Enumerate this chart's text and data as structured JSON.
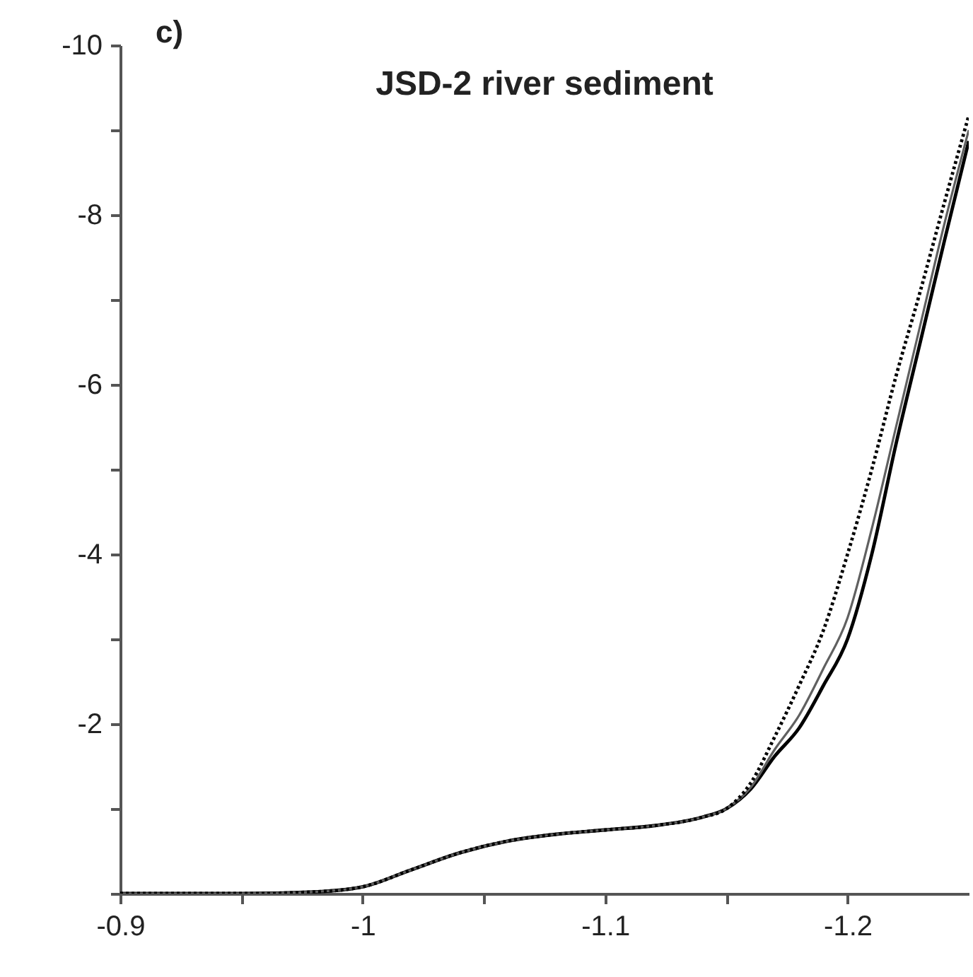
{
  "chart_data": {
    "type": "line",
    "title": "JSD-2 river sediment",
    "annotations": [
      "c)"
    ],
    "x": [
      -0.9,
      -0.95,
      -0.98,
      -1.0,
      -1.02,
      -1.04,
      -1.06,
      -1.08,
      -1.1,
      -1.12,
      -1.14,
      -1.15,
      -1.16,
      -1.17,
      -1.18,
      -1.19,
      -1.2,
      -1.21,
      -1.22,
      -1.23,
      -1.24,
      -1.25
    ],
    "series": [
      {
        "color": "#000000",
        "line_style": "solid",
        "values": [
          0,
          0,
          -0.02,
          -0.08,
          -0.28,
          -0.48,
          -0.62,
          -0.7,
          -0.75,
          -0.8,
          -0.9,
          -1.0,
          -1.23,
          -1.62,
          -1.95,
          -2.45,
          -3.0,
          -4.0,
          -5.3,
          -6.5,
          -7.7,
          -8.87
        ]
      },
      {
        "color": "#606060",
        "line_style": "solid",
        "values": [
          0,
          0,
          -0.02,
          -0.08,
          -0.28,
          -0.48,
          -0.62,
          -0.7,
          -0.75,
          -0.8,
          -0.9,
          -1.0,
          -1.25,
          -1.7,
          -2.1,
          -2.65,
          -3.25,
          -4.3,
          -5.5,
          -6.7,
          -7.9,
          -9.0
        ]
      },
      {
        "color": "#000000",
        "line_style": "dotted",
        "values": [
          0,
          0,
          -0.02,
          -0.08,
          -0.28,
          -0.48,
          -0.62,
          -0.7,
          -0.75,
          -0.8,
          -0.9,
          -1.0,
          -1.3,
          -1.85,
          -2.45,
          -3.1,
          -4.0,
          -5.0,
          -6.1,
          -7.1,
          -8.15,
          -9.17
        ]
      }
    ],
    "xlim": [
      -0.9,
      -1.25
    ],
    "ylim": [
      0,
      -10
    ],
    "xticks": [
      -0.9,
      {
        "value": -0.95,
        "label": null
      },
      -1,
      {
        "value": -1.05,
        "label": null
      },
      -1.1,
      {
        "value": -1.15,
        "label": null
      },
      -1.2
    ],
    "yticks": [
      {
        "value": 0,
        "label": null
      },
      {
        "value": -1,
        "label": null
      },
      -2,
      {
        "value": -3,
        "label": null
      },
      -4,
      {
        "value": -5,
        "label": null
      },
      -6,
      {
        "value": -7,
        "label": null
      },
      -8,
      {
        "value": -9,
        "label": null
      },
      -10
    ],
    "grid": false,
    "marker": "none"
  }
}
